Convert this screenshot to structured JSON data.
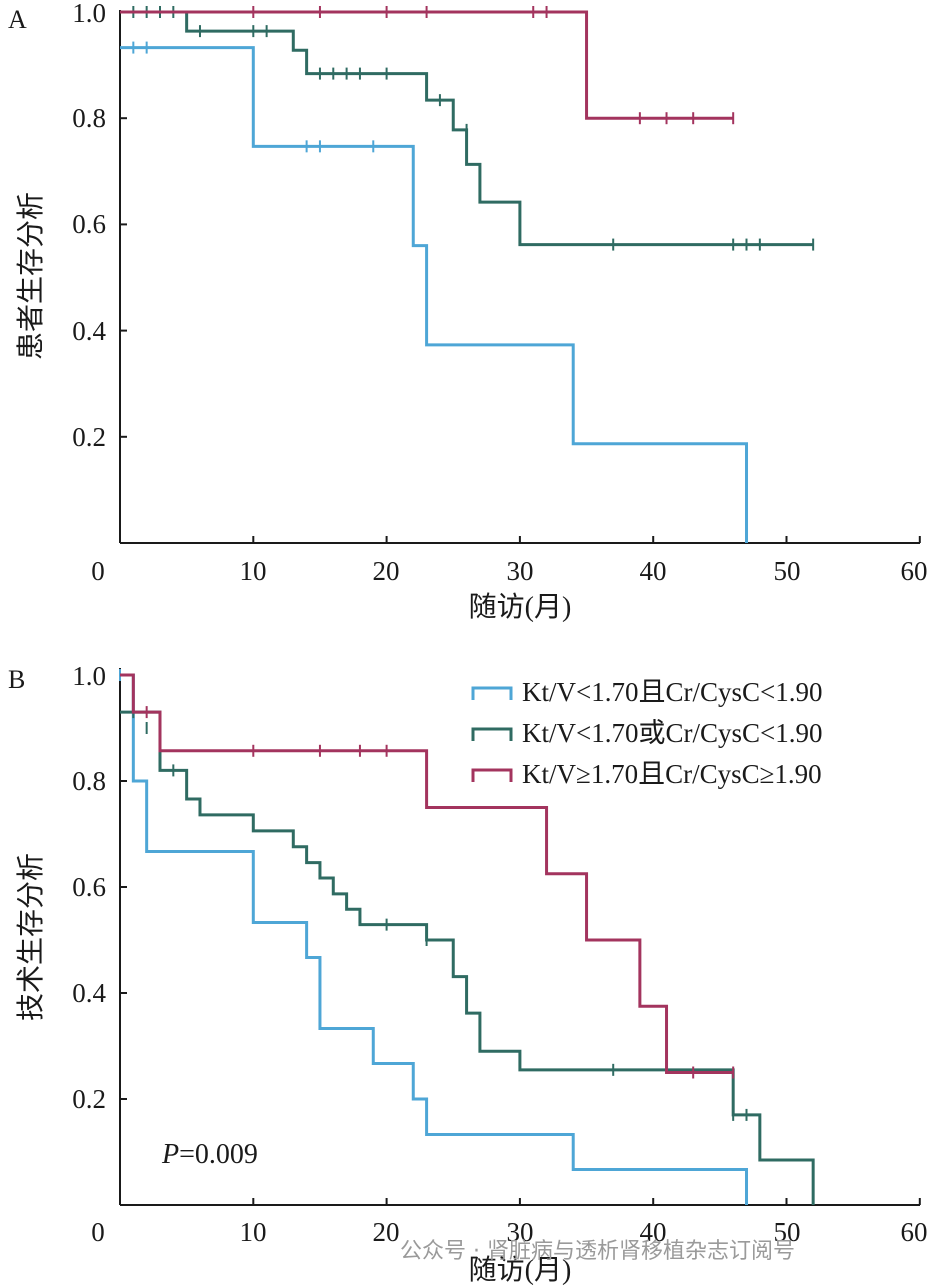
{
  "chart_data": [
    {
      "panel": "A",
      "type": "line",
      "subtype": "kaplan-meier",
      "xlabel": "随访(月)",
      "ylabel": "患者生存分析",
      "xlim": [
        0,
        60
      ],
      "ylim": [
        0,
        1.0
      ],
      "xticks": [
        "0",
        "10",
        "20",
        "30",
        "40",
        "50",
        "60"
      ],
      "yticks": [
        "0.2",
        "0.4",
        "0.6",
        "0.8",
        "1.0"
      ],
      "grid": false,
      "series": [
        {
          "name": "Kt/V<1.70且Cr/CysC<1.90",
          "color": "#4ea6d6",
          "steps": [
            [
              0,
              0.933
            ],
            [
              10,
              0.747
            ],
            [
              22,
              0.56
            ],
            [
              23,
              0.373
            ],
            [
              34,
              0.187
            ],
            [
              47,
              0.0
            ]
          ],
          "censored": [
            [
              1,
              0.933
            ],
            [
              2,
              0.933
            ],
            [
              14,
              0.747
            ],
            [
              15,
              0.747
            ],
            [
              19,
              0.747
            ]
          ]
        },
        {
          "name": "Kt/V<1.70或Cr/CysC<1.90",
          "color": "#2f6b62",
          "steps": [
            [
              0,
              1.0
            ],
            [
              5,
              0.964
            ],
            [
              13,
              0.928
            ],
            [
              14,
              0.884
            ],
            [
              23,
              0.834
            ],
            [
              25,
              0.778
            ],
            [
              26,
              0.713
            ],
            [
              27,
              0.642
            ],
            [
              30,
              0.562
            ],
            [
              52,
              0.562
            ]
          ],
          "censored": [
            [
              1,
              1.0
            ],
            [
              2,
              1.0
            ],
            [
              3,
              1.0
            ],
            [
              4,
              1.0
            ],
            [
              6,
              0.964
            ],
            [
              10,
              0.964
            ],
            [
              11,
              0.964
            ],
            [
              15,
              0.884
            ],
            [
              16,
              0.884
            ],
            [
              17,
              0.884
            ],
            [
              18,
              0.884
            ],
            [
              20,
              0.884
            ],
            [
              24,
              0.834
            ],
            [
              26,
              0.778
            ],
            [
              37,
              0.562
            ],
            [
              46,
              0.562
            ],
            [
              47,
              0.562
            ],
            [
              48,
              0.562
            ],
            [
              52,
              0.562
            ]
          ]
        },
        {
          "name": "Kt/V≥1.70且Cr/CysC≥1.90",
          "color": "#a3345e",
          "steps": [
            [
              0,
              1.0
            ],
            [
              35,
              0.8
            ],
            [
              46,
              0.8
            ]
          ],
          "censored": [
            [
              10,
              1.0
            ],
            [
              15,
              1.0
            ],
            [
              20,
              1.0
            ],
            [
              23,
              1.0
            ],
            [
              31,
              1.0
            ],
            [
              32,
              1.0
            ],
            [
              39,
              0.8
            ],
            [
              41,
              0.8
            ],
            [
              43,
              0.8
            ],
            [
              46,
              0.8
            ]
          ]
        }
      ]
    },
    {
      "panel": "B",
      "type": "line",
      "subtype": "kaplan-meier",
      "xlabel": "随访(月)",
      "ylabel": "技术生存分析",
      "xlim": [
        0,
        60
      ],
      "ylim": [
        0,
        1.0
      ],
      "xticks": [
        "0",
        "10",
        "20",
        "30",
        "40",
        "50",
        "60"
      ],
      "yticks": [
        "0.2",
        "0.4",
        "0.6",
        "0.8",
        "1.0"
      ],
      "grid": false,
      "legend": "top-right",
      "annotation": {
        "italic": "P",
        "rest": "=0.009"
      },
      "series": [
        {
          "name": "Kt/V<1.70且Cr/CysC<1.90",
          "color": "#4ea6d6",
          "steps": [
            [
              0,
              1.0
            ],
            [
              1,
              0.8
            ],
            [
              2,
              0.667
            ],
            [
              10,
              0.533
            ],
            [
              14,
              0.467
            ],
            [
              15,
              0.333
            ],
            [
              19,
              0.267
            ],
            [
              22,
              0.2
            ],
            [
              23,
              0.133
            ],
            [
              34,
              0.067
            ],
            [
              47,
              0.0
            ]
          ],
          "censored": [
            [
              0,
              1.0
            ]
          ]
        },
        {
          "name": "Kt/V<1.70或Cr/CysC<1.90",
          "color": "#2f6b62",
          "steps": [
            [
              0,
              0.93
            ],
            [
              3,
              0.82
            ],
            [
              5,
              0.766
            ],
            [
              6,
              0.736
            ],
            [
              10,
              0.706
            ],
            [
              13,
              0.676
            ],
            [
              14,
              0.646
            ],
            [
              15,
              0.617
            ],
            [
              16,
              0.587
            ],
            [
              17,
              0.558
            ],
            [
              18,
              0.529
            ],
            [
              23,
              0.5
            ],
            [
              25,
              0.431
            ],
            [
              26,
              0.362
            ],
            [
              27,
              0.29
            ],
            [
              30,
              0.255
            ],
            [
              46,
              0.17
            ],
            [
              48,
              0.085
            ],
            [
              52,
              0.0
            ]
          ],
          "censored": [
            [
              1,
              0.93
            ],
            [
              2,
              0.9
            ],
            [
              4,
              0.82
            ],
            [
              20,
              0.529
            ],
            [
              23,
              0.5
            ],
            [
              37,
              0.255
            ],
            [
              46,
              0.17
            ],
            [
              47,
              0.17
            ]
          ]
        },
        {
          "name": "Kt/V≥1.70且Cr/CysC≥1.90",
          "color": "#a3345e",
          "steps": [
            [
              0,
              1.0
            ],
            [
              1,
              0.93
            ],
            [
              3,
              0.857
            ],
            [
              23,
              0.75
            ],
            [
              32,
              0.625
            ],
            [
              35,
              0.5
            ],
            [
              39,
              0.375
            ],
            [
              41,
              0.25
            ],
            [
              46,
              0.25
            ]
          ],
          "censored": [
            [
              2,
              0.93
            ],
            [
              10,
              0.857
            ],
            [
              15,
              0.857
            ],
            [
              18,
              0.857
            ],
            [
              20,
              0.857
            ],
            [
              43,
              0.25
            ],
            [
              46,
              0.25
            ]
          ]
        }
      ]
    }
  ],
  "panel_labels": {
    "a": "A",
    "b": "B"
  },
  "watermark": "公众号 · 肾脏病与透析肾移植杂志订阅号"
}
